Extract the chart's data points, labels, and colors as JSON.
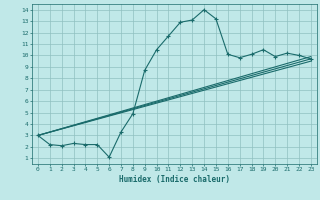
{
  "title": "",
  "xlabel": "Humidex (Indice chaleur)",
  "ylabel": "",
  "bg_color": "#c0e8e8",
  "grid_color": "#90c0c0",
  "line_color": "#1a6b6b",
  "xlim": [
    -0.5,
    23.5
  ],
  "ylim": [
    0.5,
    14.5
  ],
  "xticks": [
    0,
    1,
    2,
    3,
    4,
    5,
    6,
    7,
    8,
    9,
    10,
    11,
    12,
    13,
    14,
    15,
    16,
    17,
    18,
    19,
    20,
    21,
    22,
    23
  ],
  "yticks": [
    1,
    2,
    3,
    4,
    5,
    6,
    7,
    8,
    9,
    10,
    11,
    12,
    13,
    14
  ],
  "curve1_x": [
    0,
    1,
    2,
    3,
    4,
    5,
    6,
    7,
    8,
    9,
    10,
    11,
    12,
    13,
    14,
    15,
    16,
    17,
    18,
    19,
    20,
    21,
    22,
    23
  ],
  "curve1_y": [
    3.0,
    2.2,
    2.1,
    2.3,
    2.2,
    2.2,
    1.1,
    3.3,
    4.9,
    8.7,
    10.5,
    11.7,
    12.9,
    13.1,
    14.0,
    13.2,
    10.1,
    9.8,
    10.1,
    10.5,
    9.9,
    10.2,
    10.0,
    9.7
  ],
  "curve2_x": [
    0,
    23
  ],
  "curve2_y": [
    3.0,
    9.5
  ],
  "curve3_x": [
    0,
    23
  ],
  "curve3_y": [
    3.0,
    9.7
  ],
  "curve4_x": [
    0,
    23
  ],
  "curve4_y": [
    3.0,
    9.9
  ]
}
